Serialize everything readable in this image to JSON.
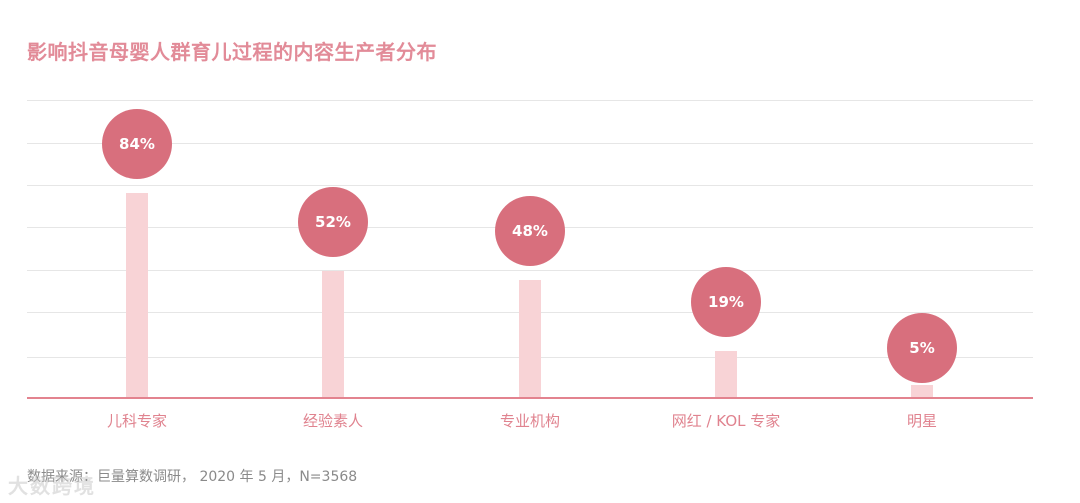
{
  "title": "影响抖音母婴人群育儿过程的内容生产者分布",
  "source": "数据来源：巨量算数调研， 2020 年 5 月，N=3568",
  "watermark": "大数跨境",
  "colors": {
    "title": "#e28b98",
    "bar": "#f8d3d6",
    "bubble": "#d86f7d",
    "baseline": "#e3838f",
    "grid": "#e6e6e6",
    "label": "#e0838f"
  },
  "bars": [
    {
      "label": "儿科专家",
      "value": 84,
      "display": "84%"
    },
    {
      "label": "经验素人",
      "value": 52,
      "display": "52%"
    },
    {
      "label": "专业机构",
      "value": 48,
      "display": "48%"
    },
    {
      "label": "网红 / KOL 专家",
      "value": 19,
      "display": "19%"
    },
    {
      "label": "明星",
      "value": 5,
      "display": "5%"
    }
  ],
  "chart_data": {
    "type": "bar",
    "title": "影响抖音母婴人群育儿过程的内容生产者分布",
    "categories": [
      "儿科专家",
      "经验素人",
      "专业机构",
      "网红 / KOL 专家",
      "明星"
    ],
    "values": [
      84,
      52,
      48,
      19,
      5
    ],
    "unit": "%",
    "xlabel": "",
    "ylabel": "",
    "ylim": [
      0,
      100
    ],
    "grid": true,
    "legend": null,
    "annotations": [
      "84%",
      "52%",
      "48%",
      "19%",
      "5%"
    ],
    "note": "数据来源：巨量算数调研， 2020 年 5 月，N=3568"
  }
}
